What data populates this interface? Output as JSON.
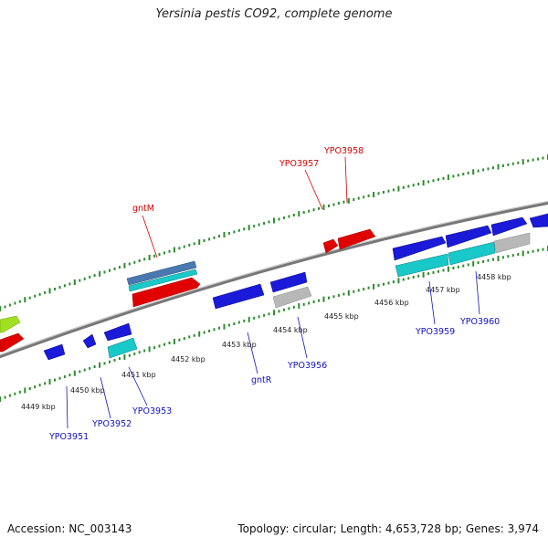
{
  "title": "Yersinia pestis CO92, complete genome",
  "footer": {
    "accession": "Accession: NC_003143",
    "stats": "Topology: circular; Length: 4,653,728 bp; Genes: 3,974"
  },
  "colors": {
    "backbone": "#777777",
    "tick_dots": "#2e8b2e",
    "label_forward": "#d40000",
    "label_reverse": "#1010c8",
    "gene_blue": "#1a1ad8",
    "gene_red": "#e00000",
    "gene_cyan": "#19c8c8",
    "gene_steel": "#4a78b0",
    "gene_gray": "#b8b8b8",
    "gene_lime": "#a0e020"
  },
  "kbp_labels": [
    "4449 kbp",
    "4450 kbp",
    "4451 kbp",
    "4452 kbp",
    "4453 kbp",
    "4454 kbp",
    "4455 kbp",
    "4456 kbp",
    "4457 kbp",
    "4458 kbp"
  ],
  "forward_gene_labels": [
    "gntM",
    "YPO3957",
    "YPO3958"
  ],
  "reverse_gene_labels": [
    "YPO3951",
    "YPO3952",
    "YPO3953",
    "gntR",
    "YPO3956",
    "YPO3959",
    "YPO3960"
  ]
}
